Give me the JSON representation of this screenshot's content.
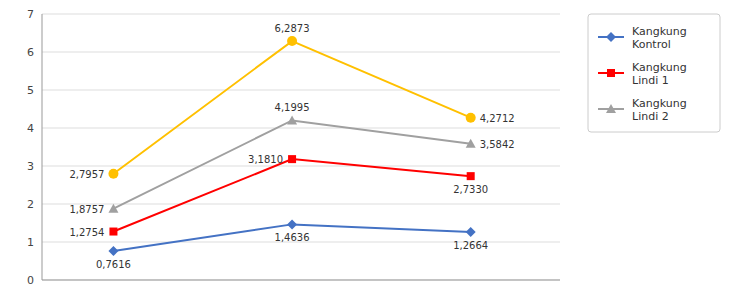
{
  "chart_data": {
    "type": "line",
    "x": [
      1,
      2,
      3
    ],
    "xlim": [
      0.6,
      3.5
    ],
    "ylim": [
      0,
      7
    ],
    "yticks": [
      0,
      1,
      2,
      3,
      4,
      5,
      6,
      7
    ],
    "tick_labels": "y",
    "grid": true,
    "legend": "right",
    "data_labels": true,
    "series": [
      {
        "name": "Kangkung\nKontrol",
        "color": "#4472C4",
        "marker": "diamond",
        "values": [
          0.7616,
          1.4636,
          1.2664
        ],
        "value_labels": [
          "0,7616",
          "1,4636",
          "1,2664"
        ]
      },
      {
        "name": "Kangkung\nLindi 1",
        "color": "#FF0000",
        "marker": "square",
        "values": [
          1.2754,
          3.181,
          2.733
        ],
        "value_labels": [
          "1,2754",
          "3,1810",
          "2,7330"
        ]
      },
      {
        "name": "Kangkung\nLindi 2",
        "color": "#A0A0A0",
        "marker": "triangle",
        "values": [
          1.8757,
          4.1995,
          3.5842
        ],
        "value_labels": [
          "1,8757",
          "4,1995",
          "3,5842"
        ]
      },
      {
        "color": "#FFC000",
        "marker": "circle",
        "values": [
          2.7957,
          6.2873,
          4.2712
        ],
        "value_labels": [
          "2,7957",
          "6,2873",
          "4,2712"
        ]
      }
    ]
  }
}
